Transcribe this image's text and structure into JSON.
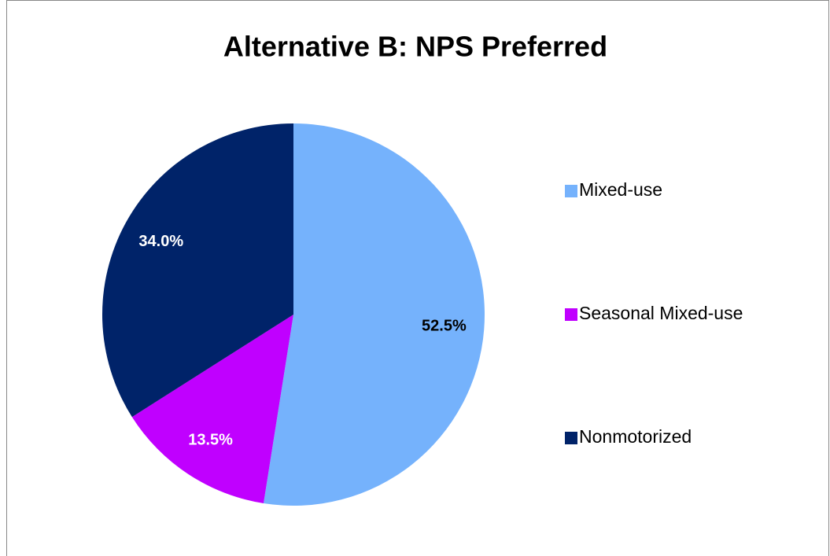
{
  "chart_data": {
    "type": "pie",
    "title": "Alternative B: NPS Preferred",
    "categories": [
      "Mixed-use",
      "Seasonal Mixed-use",
      "Nonmotorized"
    ],
    "values": [
      52.5,
      13.5,
      34.0
    ],
    "value_labels": [
      "52.5%",
      "13.5%",
      "34.0%"
    ],
    "colors": [
      "#75b2fc",
      "#c000ff",
      "#002369"
    ],
    "legend": "right"
  }
}
